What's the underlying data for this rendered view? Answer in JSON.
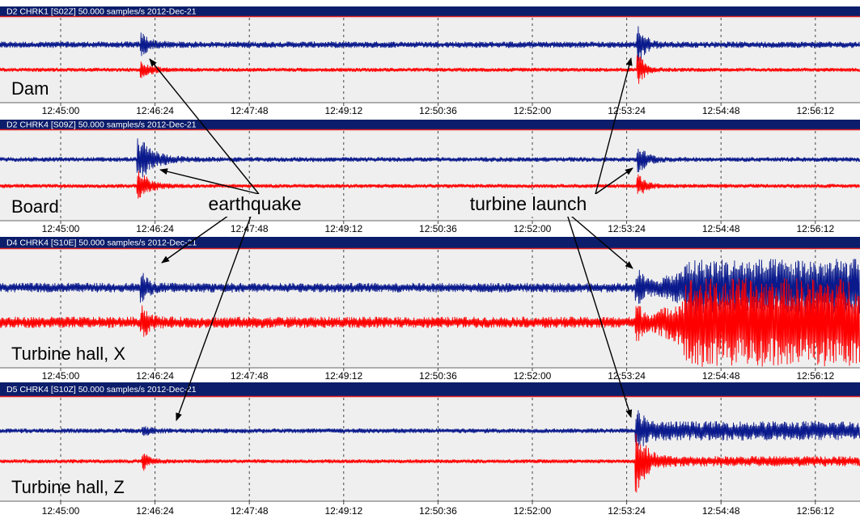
{
  "time_ticks": [
    "12:45:00",
    "12:46:24",
    "12:47:48",
    "12:49:12",
    "12:50:36",
    "12:52:00",
    "12:53:24",
    "12:54:48",
    "12:56:12"
  ],
  "panels": [
    {
      "header": "D2 CHRK1 [S02Z] 50.000 samples/s 2012-Dec-21",
      "label": "Dam"
    },
    {
      "header": "D2 CHRK4 [S09Z] 50.000 samples/s 2012-Dec-21",
      "label": "Board"
    },
    {
      "header": "D4 CHRK4 [S10E] 50.000 samples/s 2012-Dec-21",
      "label": "Turbine hall, X"
    },
    {
      "header": "D5 CHRK4 [S10Z] 50.000 samples/s 2012-Dec-21",
      "label": "Turbine hall, Z"
    }
  ],
  "annotations": [
    "earthquake",
    "turbine launch"
  ]
}
